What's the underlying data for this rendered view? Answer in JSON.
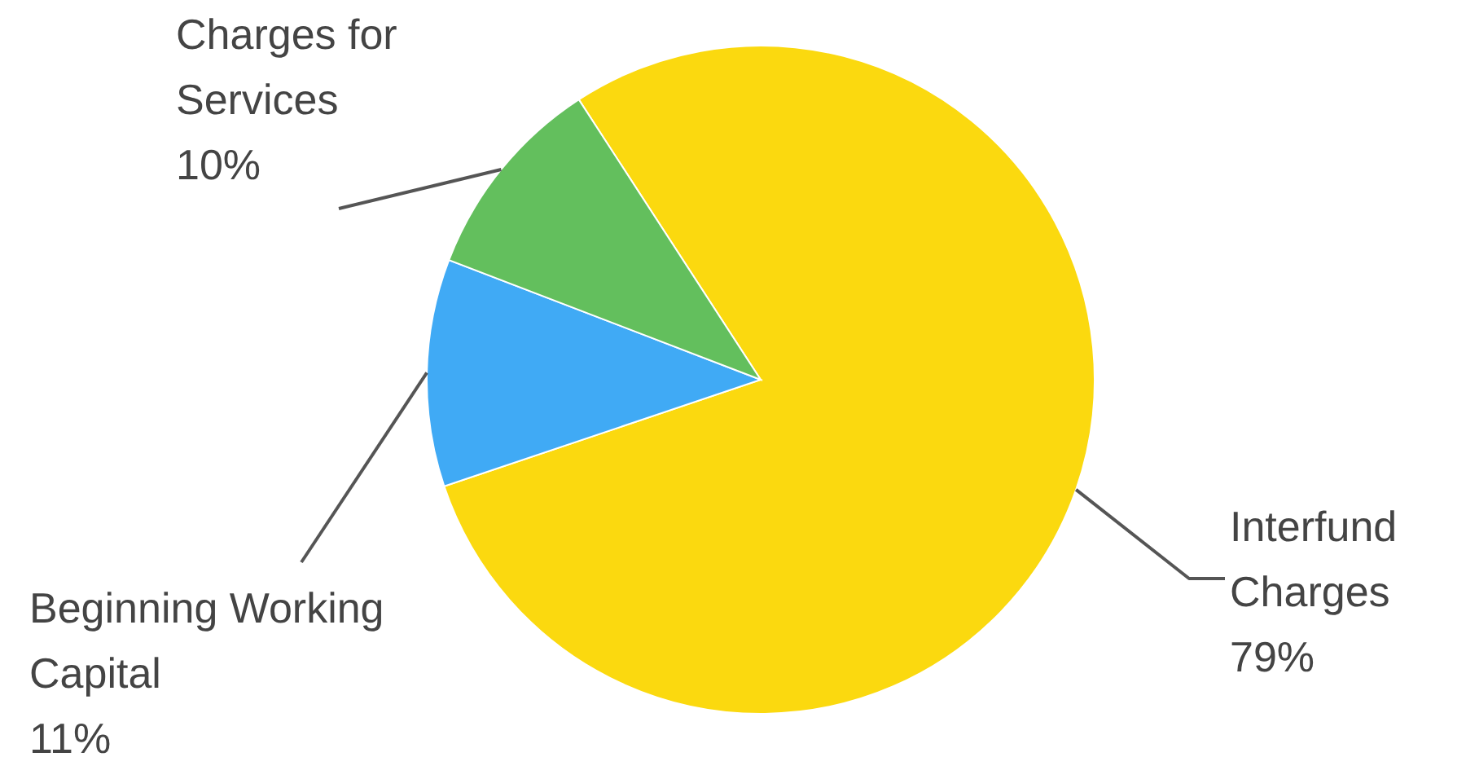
{
  "chart_data": {
    "type": "pie",
    "categories": [
      "Interfund Charges",
      "Beginning Working Capital",
      "Charges for Services"
    ],
    "values": [
      79,
      11,
      10
    ],
    "colors": [
      "#fbd90f",
      "#40aaf5",
      "#63bf5d"
    ],
    "value_labels": [
      "79%",
      "11%",
      "10%"
    ]
  }
}
